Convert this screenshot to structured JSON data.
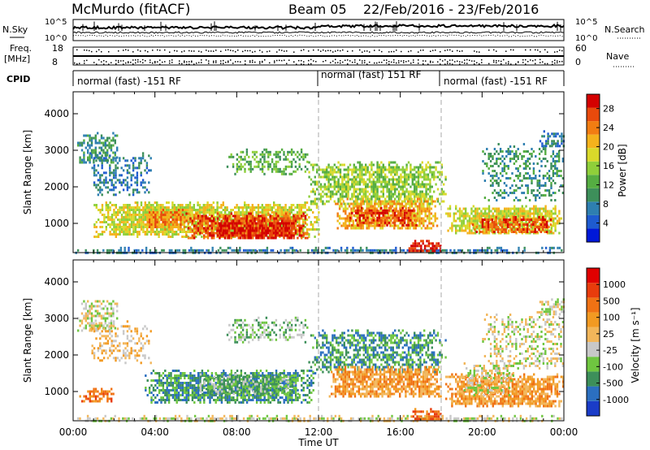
{
  "header": {
    "station": "McMurdo (fitACF)",
    "beam": "Beam 05",
    "date_range": "22/Feb/2016 - 23/Feb/2016"
  },
  "strips": {
    "nsky_label": "N.Sky",
    "nsky_ticks": [
      "10^5",
      "10^0"
    ],
    "nsearch_label": "N.Search",
    "nsearch_ticks": [
      "10^5",
      "10^0"
    ],
    "freq_label_1": "Freq.",
    "freq_label_2": "[MHz]",
    "freq_ticks": [
      "18",
      "8"
    ],
    "nave_label": "Nave",
    "nave_ticks": [
      "60",
      "0"
    ],
    "cpid_label": "CPID",
    "cpid_segments": [
      {
        "label": "normal (fast) -151 RF",
        "start_hour": 0,
        "end_hour": 12
      },
      {
        "label": "normal (fast) 151 RF",
        "start_hour": 12,
        "end_hour": 18
      },
      {
        "label": "normal (fast) -151 RF",
        "start_hour": 18,
        "end_hour": 24
      }
    ]
  },
  "chart_data": [
    {
      "type": "heatmap",
      "panel": "power",
      "xlabel": "",
      "ylabel": "Slant Range [km]",
      "xlim_hours": [
        0,
        24
      ],
      "ylim_km": [
        200,
        4600
      ],
      "yticks": [
        "1000",
        "2000",
        "3000",
        "4000"
      ],
      "dashed_markers_hours": [
        12,
        18
      ],
      "colorbar": {
        "label": "Power [dB]",
        "ticks": [
          "4",
          "8",
          "12",
          "16",
          "20",
          "24",
          "28"
        ],
        "colors": [
          "#0018d8",
          "#1e5bd0",
          "#2e7fb0",
          "#3d8f5a",
          "#55ad42",
          "#8fcf3a",
          "#d9d92a",
          "#f4b21c",
          "#f27d12",
          "#e84a0c",
          "#d40000"
        ]
      },
      "regions": [
        {
          "t0": 0.1,
          "t1": 24.0,
          "r0": 220,
          "r1": 360,
          "level": 2,
          "density": 0.7
        },
        {
          "t0": 0.2,
          "t1": 2.2,
          "r0": 2650,
          "r1": 3500,
          "level": 3,
          "density": 0.55
        },
        {
          "t0": 0.8,
          "t1": 3.8,
          "r0": 1800,
          "r1": 2950,
          "level": 2,
          "density": 0.4
        },
        {
          "t0": 1.0,
          "t1": 12.0,
          "r0": 650,
          "r1": 1600,
          "level": 6,
          "density": 0.85
        },
        {
          "t0": 3.5,
          "t1": 5.5,
          "r0": 850,
          "r1": 1400,
          "level": 8,
          "density": 0.8
        },
        {
          "t0": 5.5,
          "t1": 11.5,
          "r0": 600,
          "r1": 1300,
          "level": 9,
          "density": 0.8
        },
        {
          "t0": 7.0,
          "t1": 10.8,
          "r0": 600,
          "r1": 1100,
          "level": 10,
          "density": 0.7
        },
        {
          "t0": 7.5,
          "t1": 11.5,
          "r0": 2350,
          "r1": 3050,
          "level": 4,
          "density": 0.45
        },
        {
          "t0": 11.5,
          "t1": 18.2,
          "r0": 1500,
          "r1": 2700,
          "level": 5,
          "density": 0.7
        },
        {
          "t0": 12.8,
          "t1": 17.8,
          "r0": 850,
          "r1": 1700,
          "level": 7,
          "density": 0.8
        },
        {
          "t0": 13.5,
          "t1": 16.8,
          "r0": 950,
          "r1": 1450,
          "level": 9,
          "density": 0.7
        },
        {
          "t0": 16.4,
          "t1": 18.0,
          "r0": 220,
          "r1": 550,
          "level": 10,
          "density": 0.8
        },
        {
          "t0": 18.2,
          "t1": 23.9,
          "r0": 700,
          "r1": 1500,
          "level": 6,
          "density": 0.8
        },
        {
          "t0": 19.5,
          "t1": 23.5,
          "r0": 750,
          "r1": 1200,
          "level": 9,
          "density": 0.75
        },
        {
          "t0": 20.0,
          "t1": 24.0,
          "r0": 1600,
          "r1": 3200,
          "level": 3,
          "density": 0.35
        },
        {
          "t0": 22.8,
          "t1": 24.0,
          "r0": 3100,
          "r1": 3550,
          "level": 2,
          "density": 0.6
        }
      ]
    },
    {
      "type": "heatmap",
      "panel": "velocity",
      "xlabel": "Time UT",
      "ylabel": "Slant Range [km]",
      "xlim_hours": [
        0,
        24
      ],
      "ylim_km": [
        200,
        4600
      ],
      "xticks": [
        "00:00",
        "04:00",
        "08:00",
        "12:00",
        "16:00",
        "20:00",
        "00:00"
      ],
      "yticks": [
        "1000",
        "2000",
        "3000",
        "4000"
      ],
      "dashed_markers_hours": [
        12,
        18
      ],
      "colorbar": {
        "label": "Velocity [m s⁻¹]",
        "ticks": [
          "1000",
          "500",
          "100",
          "25",
          "-25",
          "-100",
          "-500",
          "-1000"
        ],
        "colors": [
          "#1a3cc8",
          "#2b6fc0",
          "#3d8f5a",
          "#6fc640",
          "#c8c8c8",
          "#f2b65a",
          "#f29a22",
          "#f07214",
          "#e83c0c",
          "#e00000"
        ]
      },
      "regions": [
        {
          "t0": 0.1,
          "t1": 24.0,
          "r0": 220,
          "r1": 360,
          "level": 4,
          "density": 0.7
        },
        {
          "t0": 0.2,
          "t1": 2.2,
          "r0": 2650,
          "r1": 3500,
          "level": 4,
          "density": 0.55
        },
        {
          "t0": 0.8,
          "t1": 3.8,
          "r0": 1800,
          "r1": 2950,
          "level": 5,
          "density": 0.35
        },
        {
          "t0": 0.3,
          "t1": 2.0,
          "r0": 700,
          "r1": 1100,
          "level": 7,
          "density": 0.6
        },
        {
          "t0": 3.5,
          "t1": 11.8,
          "r0": 700,
          "r1": 1600,
          "level": 2,
          "density": 0.8
        },
        {
          "t0": 6.0,
          "t1": 11.0,
          "r0": 900,
          "r1": 1500,
          "level": 3,
          "density": 0.6
        },
        {
          "t0": 7.5,
          "t1": 11.5,
          "r0": 2350,
          "r1": 3050,
          "level": 3,
          "density": 0.45
        },
        {
          "t0": 11.5,
          "t1": 18.2,
          "r0": 1500,
          "r1": 2700,
          "level": 2,
          "density": 0.6
        },
        {
          "t0": 12.5,
          "t1": 18.0,
          "r0": 850,
          "r1": 1700,
          "level": 6,
          "density": 0.8
        },
        {
          "t0": 16.5,
          "t1": 18.0,
          "r0": 220,
          "r1": 550,
          "level": 7,
          "density": 0.8
        },
        {
          "t0": 18.2,
          "t1": 24.0,
          "r0": 600,
          "r1": 1500,
          "level": 6,
          "density": 0.8
        },
        {
          "t0": 19.0,
          "t1": 21.5,
          "r0": 900,
          "r1": 1800,
          "level": 4,
          "density": 0.5
        },
        {
          "t0": 20.0,
          "t1": 24.0,
          "r0": 1600,
          "r1": 3200,
          "level": 4,
          "density": 0.35
        },
        {
          "t0": 22.8,
          "t1": 24.0,
          "r0": 3100,
          "r1": 3550,
          "level": 4,
          "density": 0.6
        }
      ]
    }
  ]
}
